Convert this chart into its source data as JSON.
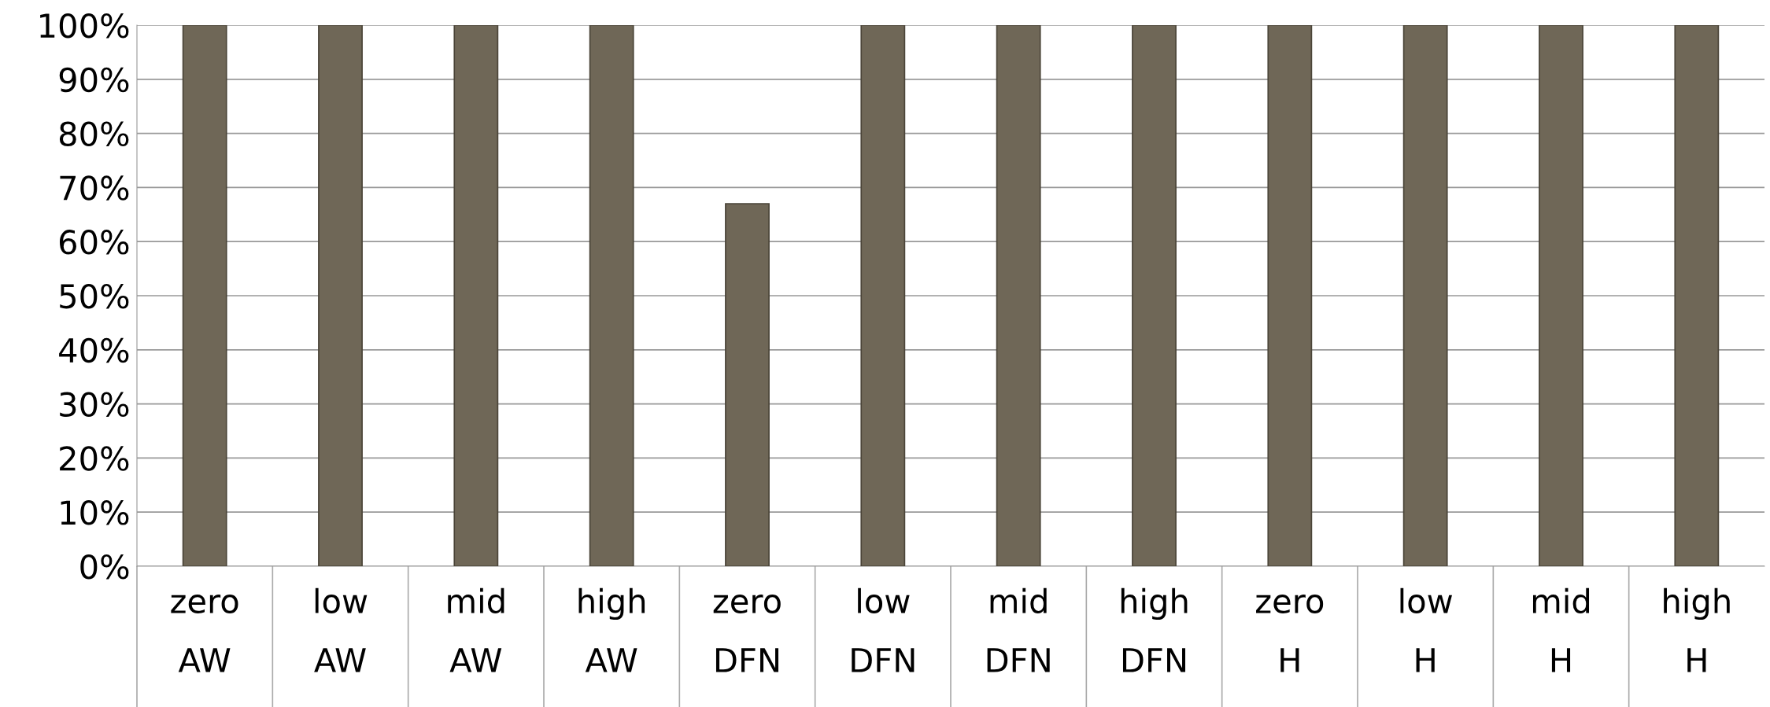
{
  "chart_data": {
    "type": "bar",
    "categories": [
      "zero\nAW",
      "low\nAW",
      "mid\nAW",
      "high\nAW",
      "zero\nDFN",
      "low\nDFN",
      "mid\nDFN",
      "high\nDFN",
      "zero\nH",
      "low\nH",
      "mid\nH",
      "high\nH"
    ],
    "values": [
      100,
      100,
      100,
      100,
      67,
      100,
      100,
      100,
      100,
      100,
      100,
      100
    ],
    "color": "#6f6757",
    "ylim": [
      0,
      100
    ],
    "yticks": [
      {
        "value": 0,
        "label": "0%"
      },
      {
        "value": 10,
        "label": "10%"
      },
      {
        "value": 20,
        "label": "20%"
      },
      {
        "value": 30,
        "label": "30%"
      },
      {
        "value": 40,
        "label": "40%"
      },
      {
        "value": 50,
        "label": "50%"
      },
      {
        "value": 60,
        "label": "60%"
      },
      {
        "value": 70,
        "label": "70%"
      },
      {
        "value": 80,
        "label": "80%"
      },
      {
        "value": 90,
        "label": "90%"
      },
      {
        "value": 100,
        "label": "100%"
      }
    ],
    "grid": "y"
  }
}
